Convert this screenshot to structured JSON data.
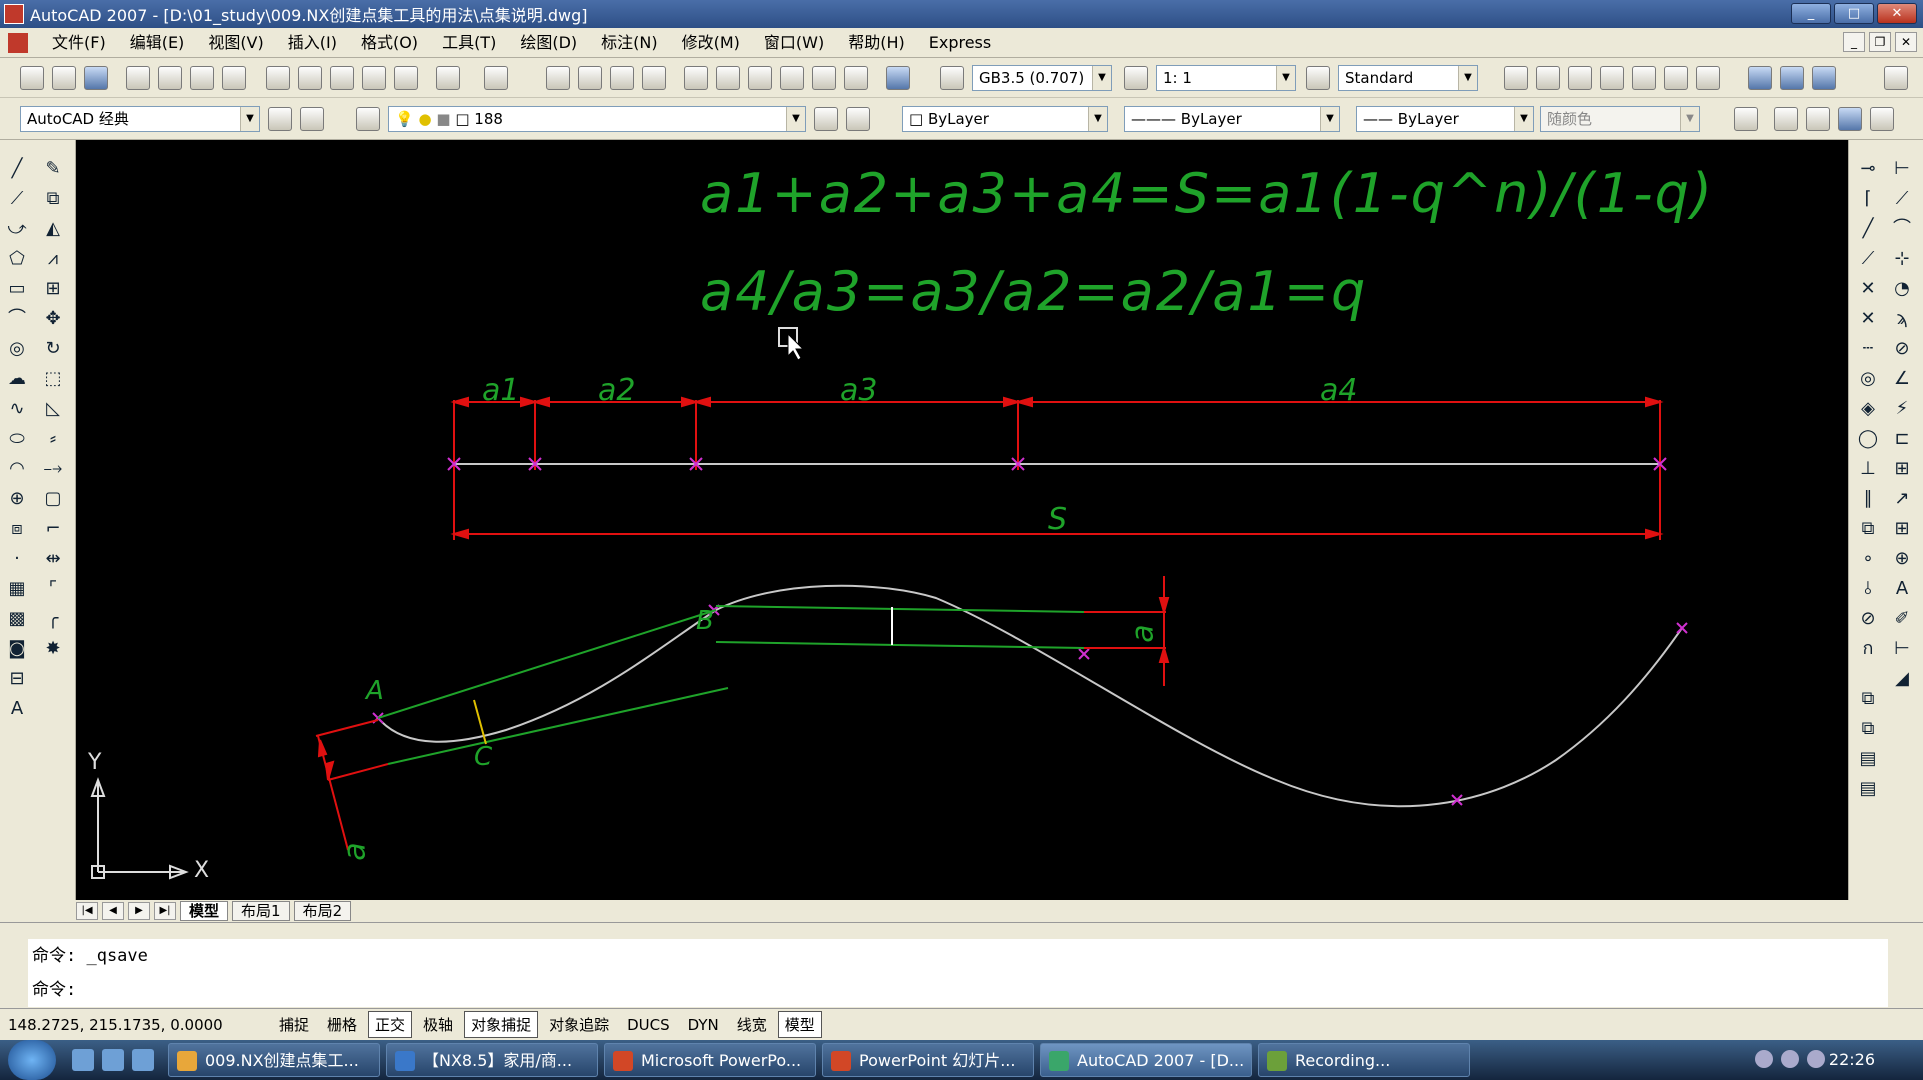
{
  "title_bar": {
    "title": "AutoCAD 2007 - [D:\\01_study\\009.NX创建点集工具的用法\\点集说明.dwg]",
    "minimize": "_",
    "maximize": "□",
    "close": "✕"
  },
  "menu": {
    "items": [
      "文件(F)",
      "编辑(E)",
      "视图(V)",
      "插入(I)",
      "格式(O)",
      "工具(T)",
      "绘图(D)",
      "标注(N)",
      "修改(M)",
      "窗口(W)",
      "帮助(H)",
      "Express"
    ]
  },
  "toolbar1": {
    "text_style": "GB3.5 (0.707)",
    "dim_scale": "1: 1",
    "table_style": "Standard"
  },
  "toolbar2": {
    "workspace": "AutoCAD 经典",
    "layer": "188",
    "color": "ByLayer",
    "linetype": "ByLayer",
    "lineweight": "ByLayer",
    "plot_style": "随颜色"
  },
  "drawing": {
    "formula1": "a1+a2+a3+a4=S=a1(1-q^n)/(1-q)",
    "formula2": "a4/a3=a3/a2=a2/a1=q",
    "dim_labels": [
      "a1",
      "a2",
      "a3",
      "a4"
    ],
    "total_label": "S",
    "point_labels": {
      "a": "A",
      "b": "B",
      "c": "C"
    },
    "a_chord_label": "a",
    "a_left_label": "a",
    "ucs": {
      "x": "X",
      "y": "Y"
    },
    "colors": {
      "text": "#1fa32a",
      "dimension": "#e01010",
      "curve": "#c8c8c8",
      "marker": "#d030d0"
    }
  },
  "tabs": {
    "nav": [
      "|◀",
      "◀",
      "▶",
      "▶|"
    ],
    "items": [
      "模型",
      "布局1",
      "布局2"
    ]
  },
  "command": {
    "line1": "命令:  _qsave",
    "line2": "命令:"
  },
  "status": {
    "coords": "148.2725,  215.1735,  0.0000",
    "buttons": [
      "捕捉",
      "栅格",
      "正交",
      "极轴",
      "对象捕捉",
      "对象追踪",
      "DUCS",
      "DYN",
      "线宽",
      "模型"
    ]
  },
  "taskbar": {
    "items": [
      "009.NX创建点集工...",
      "【NX8.5】家用/商...",
      "Microsoft PowerPo...",
      "PowerPoint 幻灯片...",
      "AutoCAD 2007 - [D...",
      "Recording..."
    ],
    "clock": "22:26"
  }
}
